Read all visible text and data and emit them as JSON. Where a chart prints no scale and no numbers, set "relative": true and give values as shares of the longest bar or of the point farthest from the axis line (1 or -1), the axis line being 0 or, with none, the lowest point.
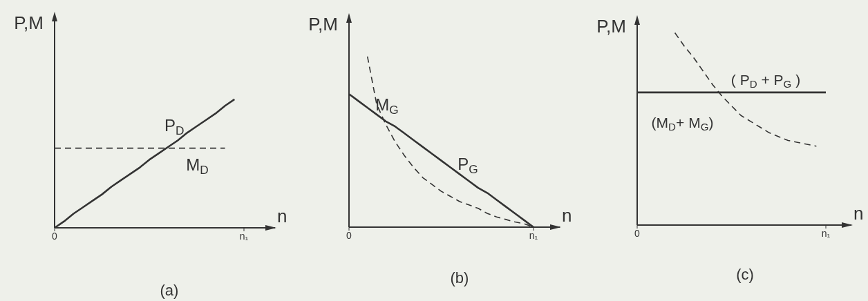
{
  "chart_data": [
    {
      "type": "line",
      "title": "(a)",
      "xlabel": "n",
      "ylabel": "P,M",
      "relative": true,
      "marker": "none",
      "categories": [
        "0",
        null,
        null,
        null,
        null,
        null,
        null,
        null,
        null,
        null,
        null,
        null,
        null,
        null,
        null,
        null,
        null,
        null,
        null,
        null,
        "n₁"
      ],
      "series": [
        {
          "name": "P$_{D}$",
          "color": "#333333",
          "line_style": "solid",
          "values": [
            0,
            0.05,
            0.11,
            0.16,
            0.21,
            0.26,
            0.32,
            0.37,
            0.42,
            0.47,
            0.53,
            0.58,
            0.63,
            0.68,
            0.74,
            0.79,
            0.84,
            0.89,
            0.95,
            1,
            null
          ]
        },
        {
          "name": "M$_{D}$",
          "color": "#333333",
          "line_style": "dashed",
          "values": [
            0.62,
            0.62,
            0.62,
            0.62,
            0.62,
            0.62,
            0.62,
            0.62,
            0.62,
            0.62,
            0.62,
            0.62,
            0.62,
            0.62,
            0.62,
            0.62,
            0.62,
            0.62,
            0.62,
            null,
            null
          ]
        }
      ]
    },
    {
      "type": "line",
      "title": "(b)",
      "xlabel": "n",
      "ylabel": "P,M",
      "relative": true,
      "marker": "none",
      "categories": [
        "0",
        null,
        null,
        null,
        null,
        null,
        null,
        null,
        null,
        null,
        null,
        null,
        null,
        null,
        null,
        null,
        null,
        null,
        null,
        null,
        "n₁"
      ],
      "series": [
        {
          "name": "P$_{G}$",
          "color": "#333333",
          "line_style": "solid",
          "values": [
            0.78,
            0.74,
            0.7,
            0.66,
            0.62,
            0.59,
            0.55,
            0.51,
            0.47,
            0.43,
            0.39,
            0.35,
            0.31,
            0.27,
            0.23,
            0.2,
            0.16,
            0.12,
            0.08,
            0.04,
            0
          ]
        },
        {
          "name": "M$_{G}$",
          "color": "#333333",
          "line_style": "dashed",
          "values": [
            null,
            null,
            1,
            0.72,
            0.6,
            0.5,
            0.42,
            0.35,
            0.29,
            0.25,
            0.21,
            0.18,
            0.15,
            0.13,
            0.11,
            0.08,
            0.06,
            0.045,
            0.03,
            0.02,
            0
          ]
        }
      ]
    },
    {
      "type": "line",
      "title": "(c)",
      "xlabel": "n",
      "ylabel": "P,M",
      "relative": true,
      "marker": "none",
      "categories": [
        "0",
        null,
        null,
        null,
        null,
        null,
        null,
        null,
        null,
        null,
        null,
        null,
        null,
        null,
        null,
        null,
        null,
        null,
        null,
        null,
        "n₁"
      ],
      "series": [
        {
          "name": "( P$_{D}$ + P$_{G}$ )",
          "color": "#333333",
          "line_style": "solid",
          "values": [
            0.69,
            0.69,
            0.69,
            0.69,
            0.69,
            0.69,
            0.69,
            0.69,
            0.69,
            0.69,
            0.69,
            0.69,
            0.69,
            0.69,
            0.69,
            0.69,
            0.69,
            0.69,
            0.69,
            0.69,
            0.69
          ]
        },
        {
          "name": "(M$_{D}$+ M$_{G}$)",
          "color": "#333333",
          "line_style": "dashed",
          "values": [
            null,
            null,
            null,
            null,
            1,
            0.93,
            0.87,
            0.8,
            0.73,
            0.67,
            0.62,
            0.57,
            0.54,
            0.51,
            0.48,
            0.46,
            0.44,
            0.43,
            0.42,
            0.41,
            null
          ]
        }
      ]
    }
  ]
}
